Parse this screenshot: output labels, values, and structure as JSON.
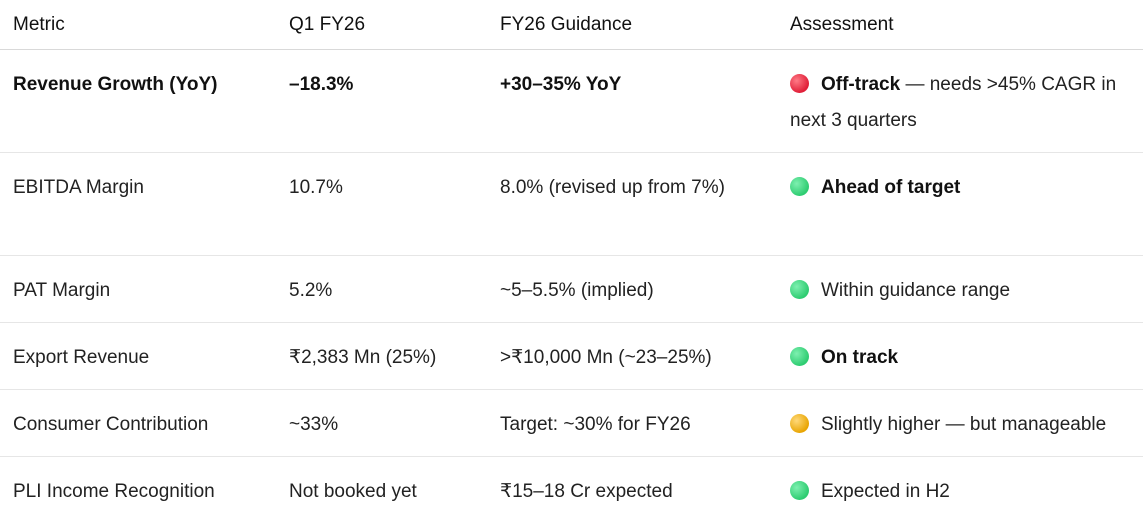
{
  "headers": [
    "Metric",
    "Q1 FY26",
    "FY26 Guidance",
    "Assessment"
  ],
  "rows": [
    {
      "metric": "Revenue Growth (YoY)",
      "q1": "–18.3%",
      "guidance": "+30–35% YoY",
      "status_color": "#e01e37",
      "status_icon": "red-circle-icon",
      "assessment_bold": "Off-track",
      "assessment_rest": " — needs >45% CAGR in next 3 quarters"
    },
    {
      "metric": "EBITDA Margin",
      "q1": "10.7%",
      "guidance": "8.0% (revised up from 7%)",
      "status_color": "#2ecc71",
      "status_icon": "green-circle-icon",
      "assessment_bold": "Ahead of target",
      "assessment_rest": ""
    },
    {
      "metric": "PAT Margin",
      "q1": "5.2%",
      "guidance": "~5–5.5% (implied)",
      "status_color": "#2ecc71",
      "status_icon": "green-circle-icon",
      "assessment_bold": "",
      "assessment_rest": "Within guidance range"
    },
    {
      "metric": "Export Revenue",
      "q1": "₹2,383 Mn (25%)",
      "guidance": ">₹10,000 Mn (~23–25%)",
      "status_color": "#2ecc71",
      "status_icon": "green-circle-icon",
      "assessment_bold": "On track",
      "assessment_rest": ""
    },
    {
      "metric": "Consumer Contribution",
      "q1": "~33%",
      "guidance": "Target: ~30% for FY26",
      "status_color": "#e8a400",
      "status_icon": "yellow-circle-icon",
      "assessment_bold": "",
      "assessment_rest": "Slightly higher — but manageable"
    },
    {
      "metric": "PLI Income Recognition",
      "q1": "Not booked yet",
      "guidance": "₹15–18 Cr expected",
      "status_color": "#2ecc71",
      "status_icon": "green-circle-icon",
      "assessment_bold": "",
      "assessment_rest": "Expected in H2"
    }
  ]
}
